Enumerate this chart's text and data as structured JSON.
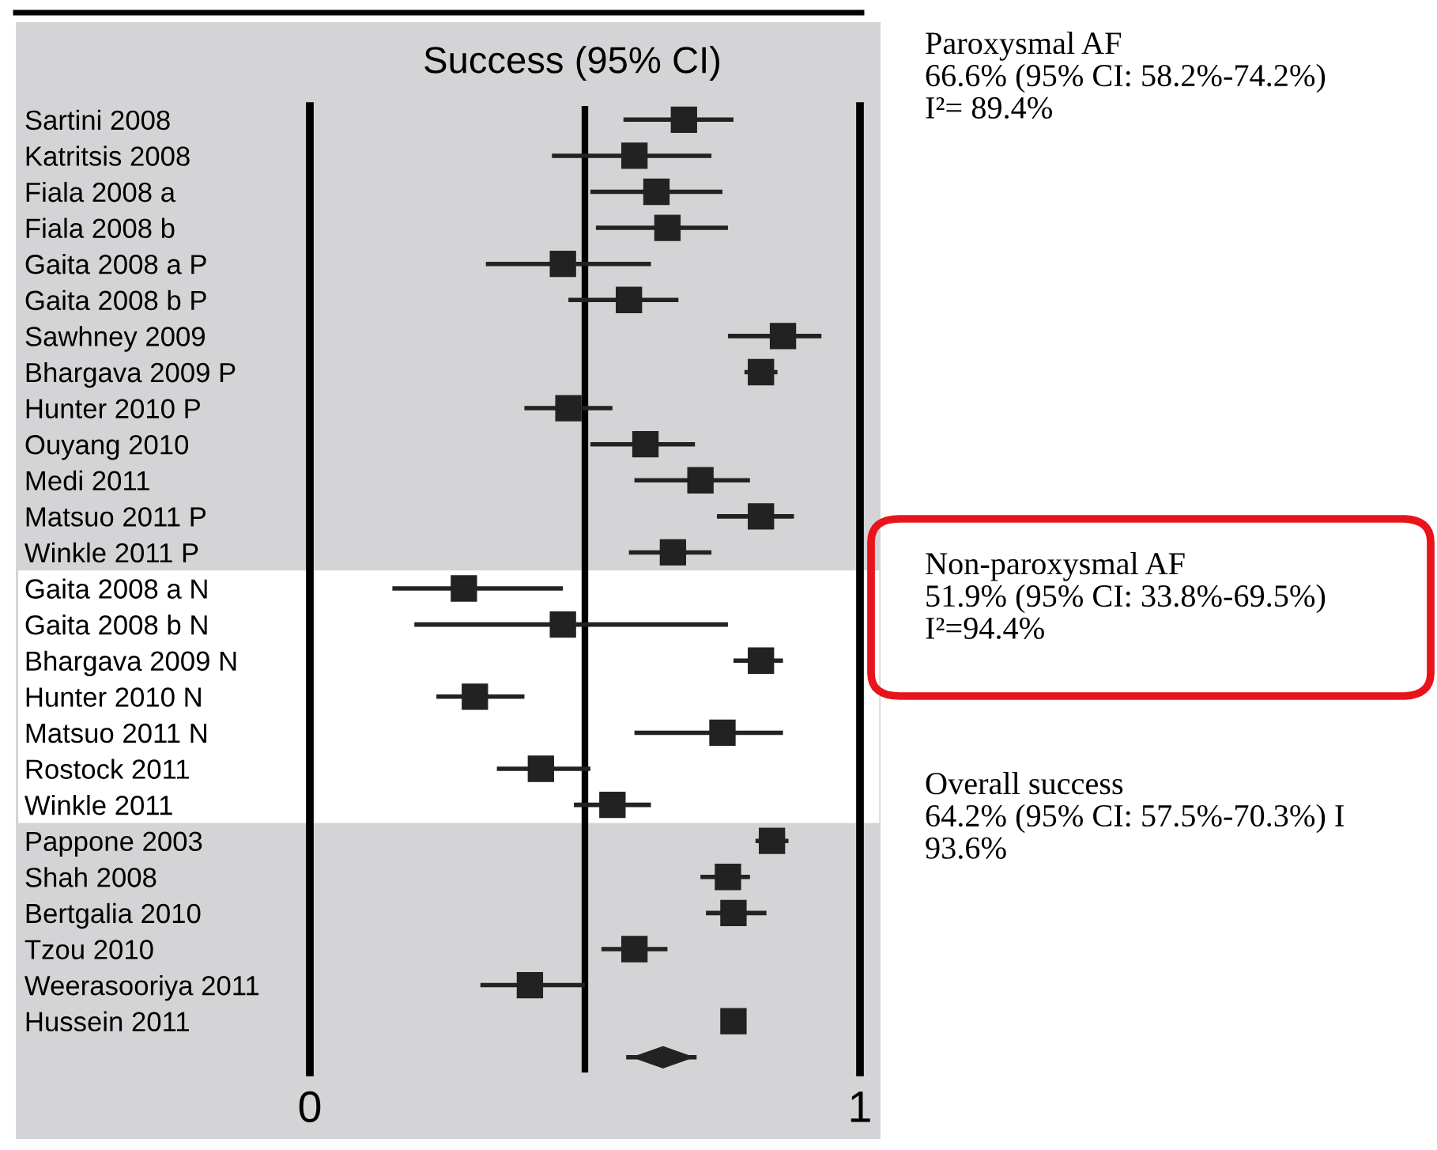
{
  "chart_data": {
    "type": "scatter",
    "orientation": "horizontal",
    "title": "Success (95% CI)",
    "categories": [
      "Sartini 2008",
      "Katritsis 2008",
      "Fiala 2008 a",
      "Fiala 2008 b",
      "Gaita 2008 a P",
      "Gaita 2008 b P",
      "Sawhney 2009",
      "Bhargava 2009 P",
      "Hunter 2010 P",
      "Ouyang 2010",
      "Medi 2011",
      "Matsuo 2011 P",
      "Winkle 2011 P",
      "Gaita 2008 a N",
      "Gaita 2008 b N",
      "Bhargava 2009 N",
      "Hunter 2010 N",
      "Matsuo 2011 N",
      "Rostock 2011",
      "Winkle 2011",
      "Pappone 2003",
      "Shah 2008",
      "Bertgalia 2010",
      "Tzou 2010",
      "Weerasooriya 2011",
      "Hussein 2011",
      null
    ],
    "series": [
      {
        "color": "#222222",
        "marker": "square",
        "values": [
          0.68,
          0.59,
          0.63,
          0.65,
          0.46,
          0.58,
          0.86,
          0.82,
          0.47,
          0.61,
          0.71,
          0.82,
          0.66,
          0.28,
          0.46,
          0.82,
          0.3,
          0.75,
          0.42,
          0.55,
          0.84,
          0.76,
          0.77,
          0.59,
          0.4,
          0.77,
          null
        ],
        "errors": [
          [
            0.57,
            0.77
          ],
          [
            0.44,
            0.73
          ],
          [
            0.51,
            0.75
          ],
          [
            0.52,
            0.76
          ],
          [
            0.32,
            0.62
          ],
          [
            0.47,
            0.67
          ],
          [
            0.76,
            0.93
          ],
          [
            0.79,
            0.85
          ],
          [
            0.39,
            0.55
          ],
          [
            0.51,
            0.7
          ],
          [
            0.59,
            0.8
          ],
          [
            0.74,
            0.88
          ],
          [
            0.58,
            0.73
          ],
          [
            0.15,
            0.46
          ],
          [
            0.19,
            0.76
          ],
          [
            0.77,
            0.86
          ],
          [
            0.23,
            0.39
          ],
          [
            0.59,
            0.86
          ],
          [
            0.34,
            0.51
          ],
          [
            0.48,
            0.62
          ],
          [
            0.81,
            0.87
          ],
          [
            0.71,
            0.8
          ],
          [
            0.72,
            0.83
          ],
          [
            0.53,
            0.65
          ],
          [
            0.31,
            0.5
          ],
          null,
          null
        ]
      },
      {
        "color": "#222222",
        "marker": "diamond",
        "values": [
          null,
          null,
          null,
          null,
          null,
          null,
          null,
          null,
          null,
          null,
          null,
          null,
          null,
          null,
          null,
          null,
          null,
          null,
          null,
          null,
          null,
          null,
          null,
          null,
          null,
          null,
          0.642
        ],
        "errors": [
          null,
          null,
          null,
          null,
          null,
          null,
          null,
          null,
          null,
          null,
          null,
          null,
          null,
          null,
          null,
          null,
          null,
          null,
          null,
          null,
          null,
          null,
          null,
          null,
          null,
          null,
          [
            0.575,
            0.703
          ]
        ]
      }
    ],
    "xlim": [
      0,
      1
    ],
    "xticks": [
      0,
      1
    ],
    "ref_lines": [
      {
        "axis": "x",
        "value": 0.5,
        "label": null
      }
    ],
    "bands": [
      {
        "axis": "y",
        "from": "Gaita 2008 a N",
        "to": "Winkle 2011",
        "color": "#ffffff"
      }
    ],
    "annotations": [
      "Paroxysmal AF\n66.6% (95% CI: 58.2%-74.2%)\nI²= 89.4%",
      "Non-paroxysmal AF\n51.9% (95% CI: 33.8%-69.5%)\nI²=94.4%",
      "Overall success\n64.2% (95% CI: 57.5%-70.3%) I\n93.6%"
    ]
  }
}
